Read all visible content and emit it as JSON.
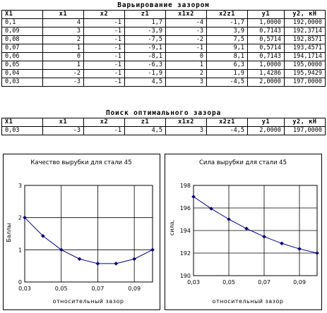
{
  "section1": {
    "title": "Варьирование зазором",
    "headers": [
      "X1",
      "x1",
      "x2",
      "z1",
      "x1x2",
      "x2z1",
      "y1",
      "y2, кН"
    ],
    "rows": [
      [
        "0,1",
        "4",
        "-1",
        "1,7",
        "-4",
        "-1,7",
        "1,0000",
        "192,0000"
      ],
      [
        "0,09",
        "3",
        "-1",
        "-3,9",
        "-3",
        "3,9",
        "0,7143",
        "192,3714"
      ],
      [
        "0,08",
        "2",
        "-1",
        "-7,5",
        "-2",
        "7,5",
        "0,5714",
        "192,8571"
      ],
      [
        "0,07",
        "1",
        "-1",
        "-9,1",
        "-1",
        "9,1",
        "0,5714",
        "193,4571"
      ],
      [
        "0,06",
        "0",
        "-1",
        "-8,1",
        "0",
        "8,1",
        "0,7143",
        "194,1714"
      ],
      [
        "0,05",
        "1",
        "-1",
        "-6,3",
        "1",
        "6,3",
        "1,0000",
        "195,0000"
      ],
      [
        "0,04",
        "-2",
        "-1",
        "-1,9",
        "2",
        "1,9",
        "1,4286",
        "195,9429"
      ],
      [
        "0,03",
        "-3",
        "-1",
        "4,5",
        "3",
        "-4,5",
        "2,0000",
        "197,0000"
      ]
    ]
  },
  "section2": {
    "title": "Поиск оптимального зазора",
    "headers": [
      "X1",
      "x1",
      "x2",
      "z1",
      "x1x2",
      "x2z1",
      "y1",
      "y2, кН"
    ],
    "rows": [
      [
        "0,03",
        "-3",
        "-1",
        "4,5",
        "3",
        "-4,5",
        "2,0000",
        "197,0000"
      ]
    ]
  },
  "charts": {
    "left": {
      "title": "Качество вырубки для стали 45",
      "ylabel": "Баллы",
      "xlabel": "относительный зазор",
      "y_ticks": [
        "0",
        "1",
        "2",
        "3"
      ],
      "x_ticks": [
        "0,03",
        "0,05",
        "0,07",
        "0,09"
      ],
      "color": "#00008b"
    },
    "right": {
      "title": "Сила вырубки для стали 45",
      "ylabel": "сила,",
      "xlabel": "относительный зазор",
      "y_ticks": [
        "190",
        "192",
        "194",
        "196",
        "198"
      ],
      "x_ticks": [
        "0,03",
        "0,05",
        "0,07",
        "0,09"
      ],
      "color": "#00008b"
    }
  },
  "chart_data": [
    {
      "type": "line",
      "title": "Качество вырубки для стали 45",
      "xlabel": "относительный зазор",
      "ylabel": "Баллы",
      "x": [
        0.03,
        0.04,
        0.05,
        0.06,
        0.07,
        0.08,
        0.09,
        0.1
      ],
      "series": [
        {
          "values": [
            2.0,
            1.4286,
            1.0,
            0.7143,
            0.5714,
            0.5714,
            0.7143,
            1.0
          ]
        }
      ],
      "xlim": [
        0.03,
        0.1
      ],
      "ylim": [
        0,
        3
      ],
      "grid": true
    },
    {
      "type": "line",
      "title": "Сила вырубки для стали 45",
      "xlabel": "относительный зазор",
      "ylabel": "сила,",
      "x": [
        0.03,
        0.04,
        0.05,
        0.06,
        0.07,
        0.08,
        0.09,
        0.1
      ],
      "series": [
        {
          "values": [
            197.0,
            195.9429,
            195.0,
            194.1714,
            193.4571,
            192.8571,
            192.3714,
            192.0
          ]
        }
      ],
      "xlim": [
        0.03,
        0.1
      ],
      "ylim": [
        190,
        198
      ],
      "grid": true
    }
  ]
}
